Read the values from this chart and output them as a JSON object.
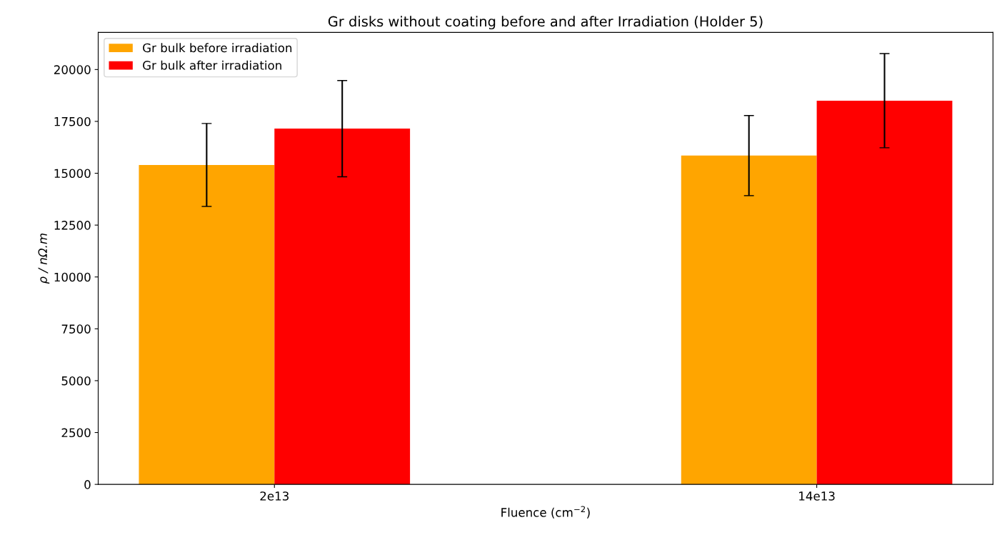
{
  "chart_data": {
    "type": "bar",
    "title": "Gr disks without coating before and after Irradiation (Holder 5)",
    "xlabel": "Fluence (cm$^{−2}$)",
    "ylabel": "ρ / nΩ.m",
    "categories": [
      "2e13",
      "14e13"
    ],
    "series": [
      {
        "name": "Gr bulk before irradiation",
        "color": "#ffa500",
        "values": [
          15400,
          15850
        ],
        "errors": [
          2000,
          1930
        ]
      },
      {
        "name": "Gr bulk after irradiation",
        "color": "#ff0000",
        "values": [
          17150,
          18500
        ],
        "errors": [
          2320,
          2270
        ]
      }
    ],
    "ylim": [
      0,
      21790
    ],
    "yticks": [
      0,
      2500,
      5000,
      7500,
      10000,
      12500,
      15000,
      17500,
      20000
    ],
    "legend": "top left",
    "grid": false
  }
}
